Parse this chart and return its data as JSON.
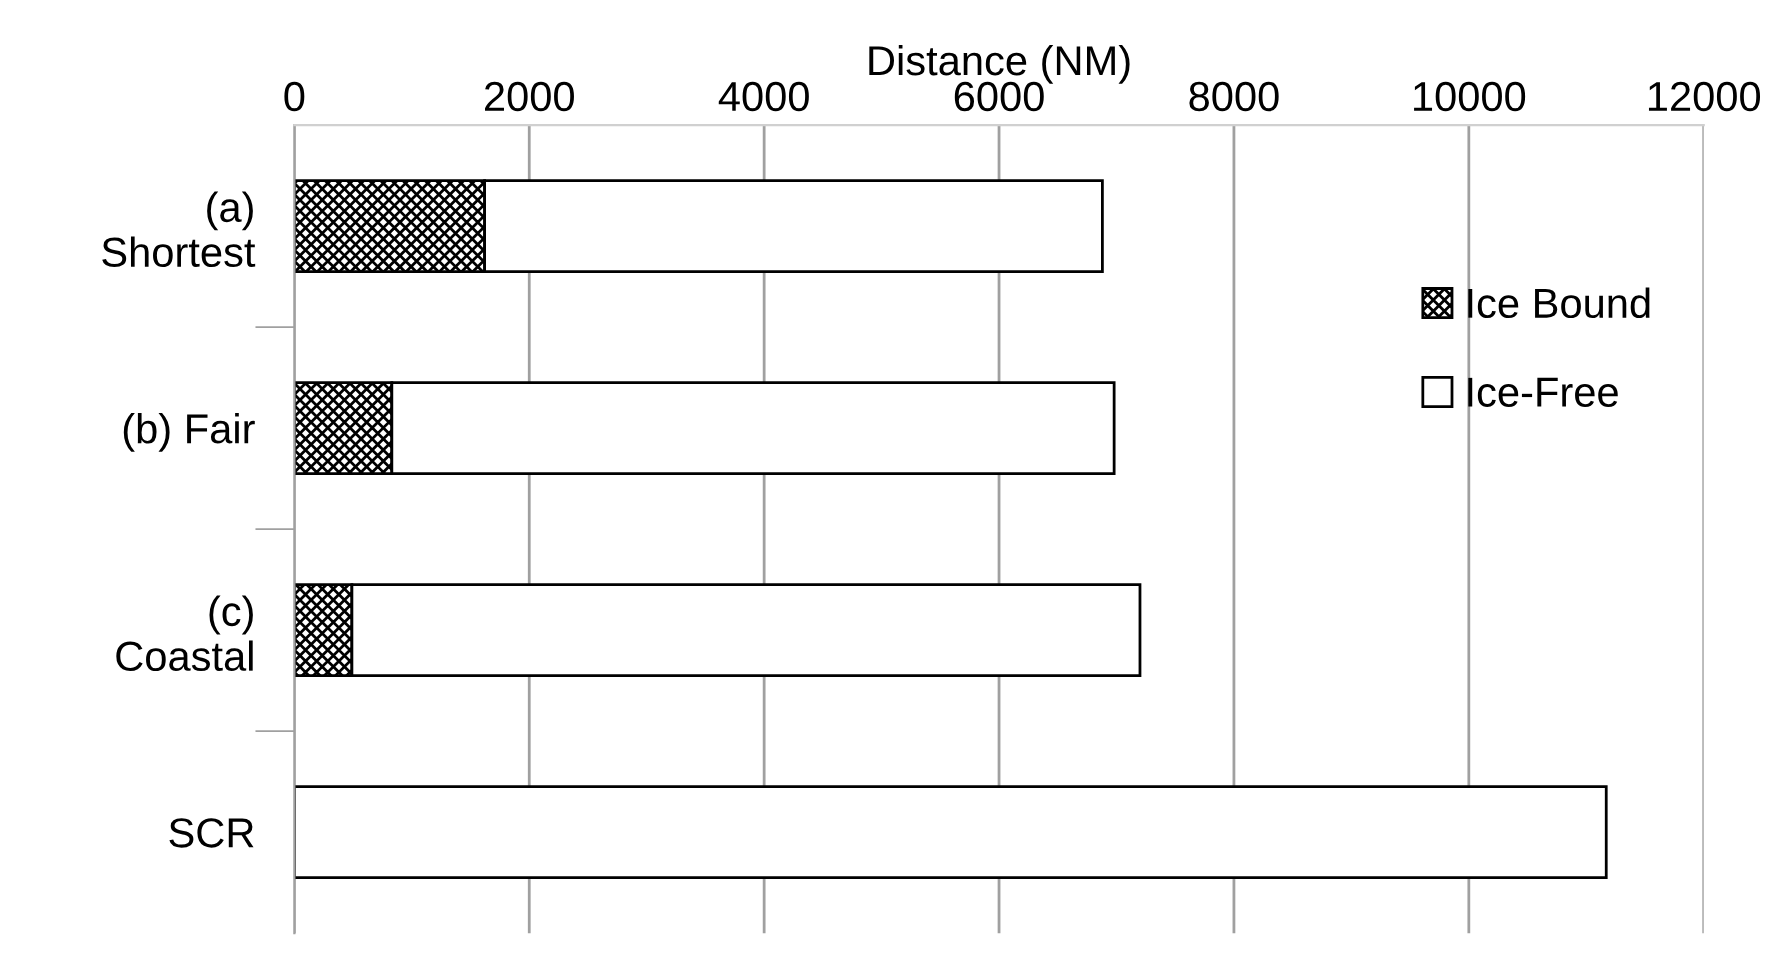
{
  "chart_data": {
    "type": "bar",
    "orientation": "horizontal",
    "stacked": true,
    "xlabel": "Distance (NM)",
    "categories": [
      "(a)\nShortest",
      "(b) Fair",
      "(c)\nCoastal",
      "SCR"
    ],
    "series": [
      {
        "name": "Ice Bound",
        "color": "#000000",
        "values": [
          1620,
          830,
          490,
          0
        ]
      },
      {
        "name": "Ice-Free",
        "color": "#ffffff",
        "values": [
          5260,
          6150,
          6710,
          11170
        ]
      }
    ],
    "xlim": [
      0,
      12000
    ],
    "xticks": [
      0,
      2000,
      4000,
      6000,
      8000,
      10000,
      12000
    ],
    "grid": "x",
    "legend": "right"
  }
}
